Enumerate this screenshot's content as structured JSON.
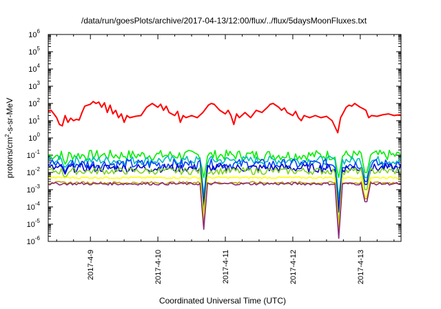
{
  "chart_data": {
    "type": "line",
    "title": "/data/run/goesPlots/archive/2017-04-13/12:00/flux/../flux/5daysMoonFluxes.txt",
    "xlabel": "Coordinated Universal Time (UTC)",
    "ylabel": "protons/cm2-s-sr-MeV",
    "ylabel_parts": {
      "base": "protons/cm",
      "sup": "2",
      "rest": "-s-sr-MeV"
    },
    "yscale": "log",
    "ylim": [
      1e-06,
      1000000.0
    ],
    "y_tick_labels": [
      {
        "base": "10",
        "exp": "-6",
        "value": 1e-06
      },
      {
        "base": "10",
        "exp": "-5",
        "value": 1e-05
      },
      {
        "base": "10",
        "exp": "-4",
        "value": 0.0001
      },
      {
        "base": "10",
        "exp": "-3",
        "value": 0.001
      },
      {
        "base": "10",
        "exp": "-2",
        "value": 0.01
      },
      {
        "base": "10",
        "exp": "-1",
        "value": 0.1
      },
      {
        "base": "10",
        "exp": "0",
        "value": 1
      },
      {
        "base": "10",
        "exp": "1",
        "value": 10
      },
      {
        "base": "10",
        "exp": "2",
        "value": 100
      },
      {
        "base": "10",
        "exp": "3",
        "value": 1000
      },
      {
        "base": "10",
        "exp": "4",
        "value": 10000
      },
      {
        "base": "10",
        "exp": "5",
        "value": 100000
      },
      {
        "base": "10",
        "exp": "6",
        "value": 1000000
      }
    ],
    "xlim": [
      "2017-04-08 09:00",
      "2017-04-13 14:30"
    ],
    "x_tick_labels": [
      {
        "label": "2017-4-9",
        "value": "2017-04-09 00:00"
      },
      {
        "label": "2017-4-10",
        "value": "2017-04-10 00:00"
      },
      {
        "label": "2017-4-11",
        "value": "2017-04-11 00:00"
      },
      {
        "label": "2017-4-12",
        "value": "2017-04-12 00:00"
      },
      {
        "label": "2017-4-13",
        "value": "2017-04-13 00:00"
      }
    ],
    "grid": false,
    "series": [
      {
        "color": "#ff0000",
        "points": [
          [
            "2017-04-08 09:00",
            35
          ],
          [
            "2017-04-08 10:00",
            40
          ],
          [
            "2017-04-08 11:00",
            25
          ],
          [
            "2017-04-08 12:00",
            15
          ],
          [
            "2017-04-08 13:00",
            6
          ],
          [
            "2017-04-08 14:00",
            5
          ],
          [
            "2017-04-08 15:00",
            20
          ],
          [
            "2017-04-08 16:00",
            8
          ],
          [
            "2017-04-08 17:00",
            14
          ],
          [
            "2017-04-08 18:00",
            10
          ],
          [
            "2017-04-08 19:00",
            12
          ],
          [
            "2017-04-08 20:00",
            11
          ],
          [
            "2017-04-08 21:00",
            30
          ],
          [
            "2017-04-08 22:00",
            70
          ],
          [
            "2017-04-09 00:00",
            90
          ],
          [
            "2017-04-09 01:00",
            130
          ],
          [
            "2017-04-09 02:00",
            100
          ],
          [
            "2017-04-09 03:00",
            120
          ],
          [
            "2017-04-09 04:00",
            60
          ],
          [
            "2017-04-09 05:00",
            110
          ],
          [
            "2017-04-09 06:00",
            30
          ],
          [
            "2017-04-09 07:00",
            80
          ],
          [
            "2017-04-09 08:00",
            25
          ],
          [
            "2017-04-09 09:00",
            40
          ],
          [
            "2017-04-09 10:00",
            15
          ],
          [
            "2017-04-09 11:00",
            25
          ],
          [
            "2017-04-09 12:00",
            8
          ],
          [
            "2017-04-09 13:00",
            20
          ],
          [
            "2017-04-09 14:00",
            15
          ],
          [
            "2017-04-09 16:00",
            18
          ],
          [
            "2017-04-09 18:00",
            20
          ],
          [
            "2017-04-09 20:00",
            60
          ],
          [
            "2017-04-09 22:00",
            100
          ],
          [
            "2017-04-10 00:00",
            60
          ],
          [
            "2017-04-10 01:00",
            90
          ],
          [
            "2017-04-10 02:00",
            40
          ],
          [
            "2017-04-10 03:00",
            70
          ],
          [
            "2017-04-10 04:00",
            30
          ],
          [
            "2017-04-10 06:00",
            20
          ],
          [
            "2017-04-10 07:00",
            35
          ],
          [
            "2017-04-10 08:00",
            8
          ],
          [
            "2017-04-10 09:00",
            20
          ],
          [
            "2017-04-10 10:00",
            15
          ],
          [
            "2017-04-10 12:00",
            20
          ],
          [
            "2017-04-10 14:00",
            15
          ],
          [
            "2017-04-10 16:00",
            30
          ],
          [
            "2017-04-10 18:00",
            80
          ],
          [
            "2017-04-10 19:00",
            100
          ],
          [
            "2017-04-10 20:00",
            90
          ],
          [
            "2017-04-10 21:00",
            60
          ],
          [
            "2017-04-10 22:00",
            40
          ],
          [
            "2017-04-11 00:00",
            25
          ],
          [
            "2017-04-11 01:00",
            40
          ],
          [
            "2017-04-11 02:00",
            20
          ],
          [
            "2017-04-11 03:00",
            6
          ],
          [
            "2017-04-11 04:00",
            25
          ],
          [
            "2017-04-11 05:00",
            15
          ],
          [
            "2017-04-11 07:00",
            30
          ],
          [
            "2017-04-11 09:00",
            15
          ],
          [
            "2017-04-11 11:00",
            40
          ],
          [
            "2017-04-11 13:00",
            30
          ],
          [
            "2017-04-11 15:00",
            60
          ],
          [
            "2017-04-11 16:00",
            90
          ],
          [
            "2017-04-11 17:00",
            100
          ],
          [
            "2017-04-11 19:00",
            60
          ],
          [
            "2017-04-11 20:00",
            40
          ],
          [
            "2017-04-11 21:00",
            55
          ],
          [
            "2017-04-11 22:00",
            30
          ],
          [
            "2017-04-12 00:00",
            20
          ],
          [
            "2017-04-12 01:00",
            35
          ],
          [
            "2017-04-12 02:00",
            15
          ],
          [
            "2017-04-12 03:00",
            10
          ],
          [
            "2017-04-12 04:00",
            20
          ],
          [
            "2017-04-12 06:00",
            15
          ],
          [
            "2017-04-12 08:00",
            20
          ],
          [
            "2017-04-12 10:00",
            15
          ],
          [
            "2017-04-12 12:00",
            18
          ],
          [
            "2017-04-12 14:00",
            10
          ],
          [
            "2017-04-12 16:00",
            2
          ],
          [
            "2017-04-12 17:00",
            15
          ],
          [
            "2017-04-12 18:00",
            30
          ],
          [
            "2017-04-12 19:00",
            60
          ],
          [
            "2017-04-12 20:00",
            80
          ],
          [
            "2017-04-12 21:00",
            70
          ],
          [
            "2017-04-12 22:00",
            100
          ],
          [
            "2017-04-13 00:00",
            60
          ],
          [
            "2017-04-13 01:00",
            50
          ],
          [
            "2017-04-13 02:00",
            40
          ],
          [
            "2017-04-13 03:00",
            15
          ],
          [
            "2017-04-13 04:00",
            20
          ],
          [
            "2017-04-13 06:00",
            18
          ],
          [
            "2017-04-13 08:00",
            22
          ],
          [
            "2017-04-13 10:00",
            25
          ],
          [
            "2017-04-13 12:00",
            20
          ],
          [
            "2017-04-13 14:00",
            22
          ],
          [
            "2017-04-13 14:30",
            20
          ]
        ]
      },
      {
        "color": "#00ee00",
        "baseline": 0.1,
        "noise": 0.6,
        "dips": [
          [
            "2017-04-08 15:00",
            0.03
          ],
          [
            "2017-04-10 16:30",
            0.005
          ],
          [
            "2017-04-12 16:30",
            0.005
          ],
          [
            "2017-04-13 02:00",
            0.01
          ]
        ]
      },
      {
        "color": "#00bbbb",
        "baseline": 0.05,
        "noise": 0.5,
        "dips": [
          [
            "2017-04-08 15:00",
            0.02
          ],
          [
            "2017-04-10 16:30",
            0.0005
          ],
          [
            "2017-04-12 16:30",
            0.0003
          ],
          [
            "2017-04-13 02:00",
            0.005
          ]
        ]
      },
      {
        "color": "#0040ff",
        "baseline": 0.03,
        "noise": 0.6,
        "dips": [
          [
            "2017-04-08 15:00",
            0.01
          ],
          [
            "2017-04-10 16:30",
            0.0002
          ],
          [
            "2017-04-12 16:30",
            0.0001
          ],
          [
            "2017-04-13 02:00",
            0.003
          ]
        ]
      },
      {
        "color": "#0000cc",
        "baseline": 0.018,
        "noise": 0.5,
        "dips": [
          [
            "2017-04-08 15:00",
            0.008
          ],
          [
            "2017-04-10 16:30",
            0.0001
          ],
          [
            "2017-04-12 16:30",
            5e-05
          ],
          [
            "2017-04-13 02:00",
            0.002
          ]
        ]
      },
      {
        "color": "#80d020",
        "baseline": 0.012,
        "noise": 0.4,
        "dips": [
          [
            "2017-04-08 15:00",
            0.005
          ],
          [
            "2017-04-10 16:30",
            5e-05
          ],
          [
            "2017-04-12 16:30",
            1e-05
          ],
          [
            "2017-04-13 02:00",
            0.001
          ]
        ]
      },
      {
        "color": "#ffff00",
        "baseline": 0.005,
        "noise": 0.1,
        "dips": [
          [
            "2017-04-10 16:30",
            2e-05
          ],
          [
            "2017-04-12 16:30",
            5e-06
          ],
          [
            "2017-04-13 02:00",
            0.0004
          ]
        ]
      },
      {
        "color": "#c0a000",
        "baseline": 0.0025,
        "noise": 0.15,
        "dips": [
          [
            "2017-04-10 16:30",
            1e-05
          ],
          [
            "2017-04-12 16:30",
            3e-06
          ],
          [
            "2017-04-13 02:00",
            0.0003
          ]
        ]
      },
      {
        "color": "#8b2a7a",
        "baseline": 0.0022,
        "noise": 0.15,
        "dips": [
          [
            "2017-04-10 16:30",
            5e-06
          ],
          [
            "2017-04-12 16:30",
            1.5e-06
          ],
          [
            "2017-04-13 02:00",
            0.0002
          ]
        ]
      }
    ]
  }
}
